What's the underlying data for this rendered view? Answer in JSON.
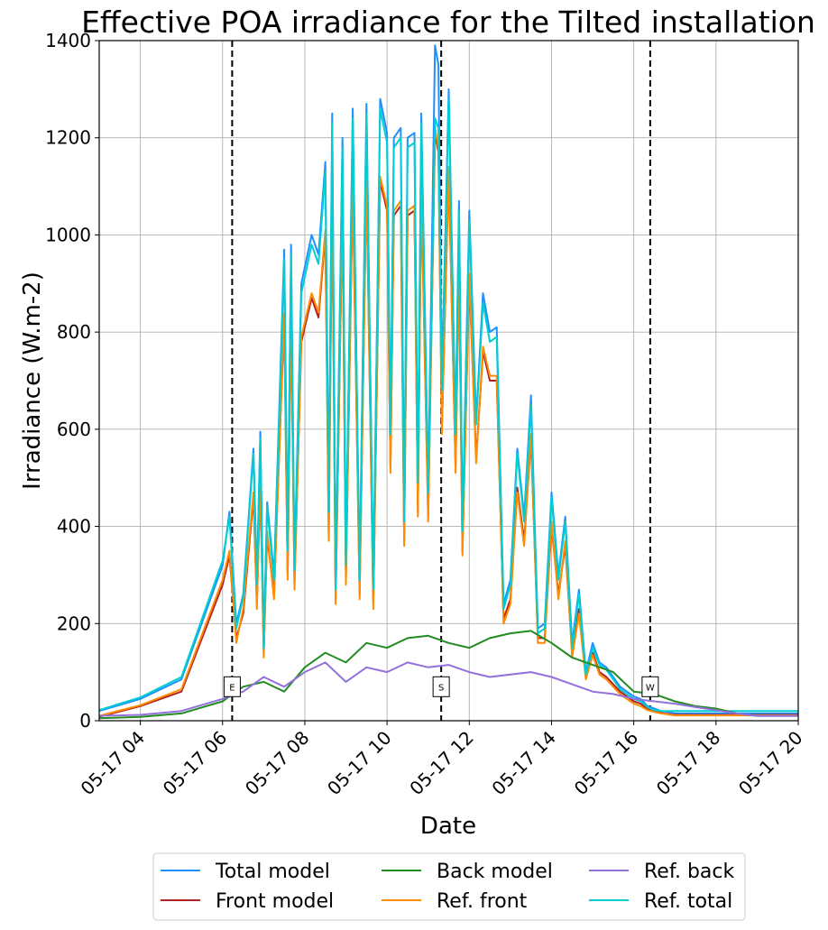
{
  "chart_data": {
    "type": "line",
    "title": "Effective POA irradiance for the Tilted installation",
    "xlabel": "Date",
    "ylabel": "Irradiance (W.m-2)",
    "xlim": [
      "05-17 03:00",
      "05-17 20:00"
    ],
    "ylim": [
      0,
      1400
    ],
    "x_ticks": [
      "05-17 04",
      "05-17 06",
      "05-17 08",
      "05-17 10",
      "05-17 12",
      "05-17 14",
      "05-17 16",
      "05-17 18",
      "05-17 20"
    ],
    "y_ticks": [
      0,
      200,
      400,
      600,
      800,
      1000,
      1200,
      1400
    ],
    "grid": true,
    "legend_position": "bottom-outside",
    "markers": [
      {
        "label": "E",
        "time": "05-17 06:14"
      },
      {
        "label": "S",
        "time": "05-17 11:19"
      },
      {
        "label": "W",
        "time": "05-17 16:24"
      }
    ],
    "series": [
      {
        "name": "Total model",
        "color": "#1e90ff",
        "x": [
          "03:00",
          "04:00",
          "05:00",
          "06:00",
          "06:10",
          "06:20",
          "06:30",
          "06:45",
          "06:50",
          "06:55",
          "07:00",
          "07:05",
          "07:15",
          "07:30",
          "07:35",
          "07:40",
          "07:45",
          "07:55",
          "08:10",
          "08:20",
          "08:30",
          "08:35",
          "08:40",
          "08:45",
          "08:55",
          "09:00",
          "09:10",
          "09:20",
          "09:30",
          "09:40",
          "09:50",
          "10:00",
          "10:05",
          "10:10",
          "10:20",
          "10:25",
          "10:30",
          "10:40",
          "10:45",
          "10:50",
          "11:00",
          "11:10",
          "11:15",
          "11:20",
          "11:30",
          "11:40",
          "11:45",
          "11:50",
          "12:00",
          "12:10",
          "12:20",
          "12:30",
          "12:40",
          "12:50",
          "13:00",
          "13:10",
          "13:20",
          "13:30",
          "13:40",
          "13:50",
          "14:00",
          "14:10",
          "14:20",
          "14:30",
          "14:40",
          "14:50",
          "15:00",
          "15:10",
          "15:20",
          "15:30",
          "15:40",
          "15:50",
          "16:00",
          "16:10",
          "16:20",
          "16:30",
          "16:40",
          "16:50",
          "17:00",
          "17:10",
          "17:20",
          "17:30",
          "17:40",
          "17:50",
          "18:00",
          "18:20",
          "18:40",
          "19:00",
          "19:30",
          "20:00"
        ],
        "values": [
          20,
          45,
          85,
          320,
          430,
          200,
          260,
          560,
          290,
          595,
          160,
          450,
          300,
          970,
          360,
          980,
          320,
          900,
          1000,
          960,
          1150,
          440,
          1250,
          280,
          1200,
          330,
          1260,
          300,
          1270,
          280,
          1280,
          1210,
          600,
          1200,
          1220,
          420,
          1200,
          1210,
          500,
          1250,
          480,
          1390,
          1350,
          700,
          1300,
          600,
          1070,
          400,
          1050,
          620,
          880,
          800,
          810,
          240,
          290,
          560,
          420,
          670,
          190,
          200,
          470,
          300,
          420,
          160,
          270,
          100,
          160,
          120,
          110,
          90,
          70,
          60,
          50,
          45,
          30,
          25,
          20,
          18,
          15,
          15,
          15,
          15,
          15,
          15,
          15,
          15,
          15,
          15,
          15,
          15
        ]
      },
      {
        "name": "Front model",
        "color": "#b22222",
        "x": [
          "03:00",
          "04:00",
          "05:00",
          "06:00",
          "06:10",
          "06:20",
          "06:30",
          "06:45",
          "06:50",
          "06:55",
          "07:00",
          "07:05",
          "07:15",
          "07:30",
          "07:35",
          "07:40",
          "07:45",
          "07:55",
          "08:10",
          "08:20",
          "08:30",
          "08:35",
          "08:40",
          "08:45",
          "08:55",
          "09:00",
          "09:10",
          "09:20",
          "09:30",
          "09:40",
          "09:50",
          "10:00",
          "10:05",
          "10:10",
          "10:20",
          "10:25",
          "10:30",
          "10:40",
          "10:45",
          "10:50",
          "11:00",
          "11:10",
          "11:15",
          "11:20",
          "11:30",
          "11:40",
          "11:45",
          "11:50",
          "12:00",
          "12:10",
          "12:20",
          "12:30",
          "12:40",
          "12:50",
          "13:00",
          "13:10",
          "13:20",
          "13:30",
          "13:40",
          "13:50",
          "14:00",
          "14:10",
          "14:20",
          "14:30",
          "14:40",
          "14:50",
          "15:00",
          "15:10",
          "15:20",
          "15:30",
          "15:40",
          "15:50",
          "16:00",
          "16:10",
          "16:20",
          "16:30",
          "16:40",
          "16:50",
          "17:00",
          "17:10",
          "17:20",
          "17:30",
          "17:40",
          "17:50",
          "18:00",
          "18:20",
          "18:40",
          "19:00",
          "19:30",
          "20:00"
        ],
        "values": [
          8,
          30,
          60,
          280,
          340,
          170,
          220,
          460,
          240,
          490,
          140,
          380,
          260,
          830,
          300,
          840,
          280,
          780,
          870,
          830,
          1000,
          380,
          1090,
          250,
          1050,
          290,
          1100,
          260,
          1110,
          240,
          1110,
          1050,
          520,
          1040,
          1060,
          370,
          1040,
          1050,
          430,
          1090,
          420,
          1210,
          1170,
          600,
          1130,
          520,
          930,
          350,
          910,
          540,
          760,
          700,
          700,
          210,
          250,
          480,
          370,
          580,
          170,
          170,
          400,
          260,
          360,
          140,
          230,
          90,
          140,
          100,
          90,
          75,
          60,
          50,
          40,
          35,
          25,
          20,
          16,
          14,
          12,
          12,
          12,
          12,
          12,
          12,
          12,
          12,
          12,
          12,
          12,
          12
        ]
      },
      {
        "name": "Back model",
        "color": "#228b22",
        "x": [
          "03:00",
          "04:00",
          "05:00",
          "06:00",
          "06:30",
          "07:00",
          "07:30",
          "08:00",
          "08:30",
          "09:00",
          "09:30",
          "10:00",
          "10:30",
          "11:00",
          "11:30",
          "12:00",
          "12:30",
          "13:00",
          "13:30",
          "14:00",
          "14:30",
          "15:00",
          "15:30",
          "16:00",
          "16:30",
          "17:00",
          "17:30",
          "18:00",
          "18:30",
          "19:00",
          "19:30",
          "20:00"
        ],
        "values": [
          5,
          8,
          15,
          40,
          70,
          80,
          60,
          110,
          140,
          120,
          160,
          150,
          170,
          175,
          160,
          150,
          170,
          180,
          185,
          160,
          130,
          115,
          100,
          60,
          55,
          40,
          30,
          25,
          15,
          10,
          10,
          10
        ]
      },
      {
        "name": "Ref. front",
        "color": "#ff8c00",
        "x": [
          "03:00",
          "04:00",
          "05:00",
          "06:00",
          "06:10",
          "06:20",
          "06:30",
          "06:45",
          "06:50",
          "06:55",
          "07:00",
          "07:05",
          "07:15",
          "07:30",
          "07:35",
          "07:40",
          "07:45",
          "07:55",
          "08:10",
          "08:20",
          "08:30",
          "08:35",
          "08:40",
          "08:45",
          "08:55",
          "09:00",
          "09:10",
          "09:20",
          "09:30",
          "09:40",
          "09:50",
          "10:00",
          "10:05",
          "10:10",
          "10:20",
          "10:25",
          "10:30",
          "10:40",
          "10:45",
          "10:50",
          "11:00",
          "11:10",
          "11:15",
          "11:20",
          "11:30",
          "11:40",
          "11:45",
          "11:50",
          "12:00",
          "12:10",
          "12:20",
          "12:30",
          "12:40",
          "12:50",
          "13:00",
          "13:10",
          "13:20",
          "13:30",
          "13:40",
          "13:50",
          "14:00",
          "14:10",
          "14:20",
          "14:30",
          "14:40",
          "14:50",
          "15:00",
          "15:10",
          "15:20",
          "15:30",
          "15:40",
          "15:50",
          "16:00",
          "16:10",
          "16:20",
          "16:30",
          "16:40",
          "16:50",
          "17:00",
          "17:10",
          "17:20",
          "17:30",
          "17:40",
          "17:50",
          "18:00",
          "18:20",
          "18:40",
          "19:00",
          "19:30",
          "20:00"
        ],
        "values": [
          10,
          32,
          65,
          290,
          350,
          160,
          230,
          470,
          230,
          500,
          130,
          390,
          250,
          840,
          290,
          850,
          270,
          790,
          880,
          840,
          1010,
          370,
          1100,
          240,
          1060,
          280,
          1110,
          250,
          1120,
          230,
          1120,
          1060,
          510,
          1050,
          1070,
          360,
          1050,
          1060,
          420,
          1100,
          410,
          1220,
          1180,
          590,
          1140,
          510,
          940,
          340,
          920,
          530,
          770,
          710,
          710,
          200,
          240,
          470,
          360,
          590,
          160,
          160,
          410,
          250,
          370,
          130,
          220,
          85,
          135,
          95,
          85,
          70,
          55,
          45,
          35,
          30,
          22,
          18,
          15,
          13,
          11,
          11,
          11,
          11,
          11,
          11,
          11,
          11,
          11,
          11,
          11,
          11
        ]
      },
      {
        "name": "Ref. back",
        "color": "#9370db",
        "x": [
          "03:00",
          "04:00",
          "05:00",
          "06:00",
          "06:30",
          "07:00",
          "07:30",
          "08:00",
          "08:30",
          "09:00",
          "09:30",
          "10:00",
          "10:30",
          "11:00",
          "11:30",
          "12:00",
          "12:30",
          "13:00",
          "13:30",
          "14:00",
          "14:30",
          "15:00",
          "15:30",
          "16:00",
          "16:30",
          "17:00",
          "17:30",
          "18:00",
          "18:30",
          "19:00",
          "19:30",
          "20:00"
        ],
        "values": [
          10,
          12,
          20,
          45,
          60,
          90,
          70,
          100,
          120,
          80,
          110,
          100,
          120,
          110,
          115,
          100,
          90,
          95,
          100,
          90,
          75,
          60,
          55,
          45,
          40,
          35,
          28,
          22,
          15,
          10,
          10,
          10
        ]
      },
      {
        "name": "Ref. total",
        "color": "#00ced1",
        "x": [
          "03:00",
          "04:00",
          "05:00",
          "06:00",
          "06:10",
          "06:20",
          "06:30",
          "06:45",
          "06:50",
          "06:55",
          "07:00",
          "07:05",
          "07:15",
          "07:30",
          "07:35",
          "07:40",
          "07:45",
          "07:55",
          "08:10",
          "08:20",
          "08:30",
          "08:35",
          "08:40",
          "08:45",
          "08:55",
          "09:00",
          "09:10",
          "09:20",
          "09:30",
          "09:40",
          "09:50",
          "10:00",
          "10:05",
          "10:10",
          "10:20",
          "10:25",
          "10:30",
          "10:40",
          "10:45",
          "10:50",
          "11:00",
          "11:10",
          "11:15",
          "11:20",
          "11:30",
          "11:40",
          "11:45",
          "11:50",
          "12:00",
          "12:10",
          "12:20",
          "12:30",
          "12:40",
          "12:50",
          "13:00",
          "13:10",
          "13:20",
          "13:30",
          "13:40",
          "13:50",
          "14:00",
          "14:10",
          "14:20",
          "14:30",
          "14:40",
          "14:50",
          "15:00",
          "15:10",
          "15:20",
          "15:30",
          "15:40",
          "15:50",
          "16:00",
          "16:10",
          "16:20",
          "16:30",
          "16:40",
          "16:50",
          "17:00",
          "17:10",
          "17:20",
          "17:30",
          "17:40",
          "17:50",
          "18:00",
          "18:20",
          "18:40",
          "19:00",
          "19:30",
          "20:00"
        ],
        "values": [
          22,
          48,
          90,
          330,
          420,
          190,
          255,
          550,
          280,
          580,
          150,
          440,
          290,
          950,
          350,
          960,
          310,
          880,
          980,
          940,
          1130,
          430,
          1230,
          270,
          1180,
          320,
          1240,
          290,
          1250,
          270,
          1260,
          1190,
          590,
          1180,
          1200,
          410,
          1180,
          1190,
          490,
          1230,
          470,
          1240,
          1220,
          680,
          1280,
          590,
          1050,
          390,
          1030,
          610,
          860,
          780,
          790,
          230,
          280,
          550,
          410,
          650,
          180,
          190,
          460,
          290,
          410,
          150,
          260,
          95,
          150,
          115,
          105,
          85,
          65,
          55,
          45,
          40,
          28,
          22,
          20,
          20,
          20,
          20,
          20,
          20,
          20,
          20,
          20,
          20,
          20,
          20,
          20,
          20
        ]
      }
    ]
  }
}
